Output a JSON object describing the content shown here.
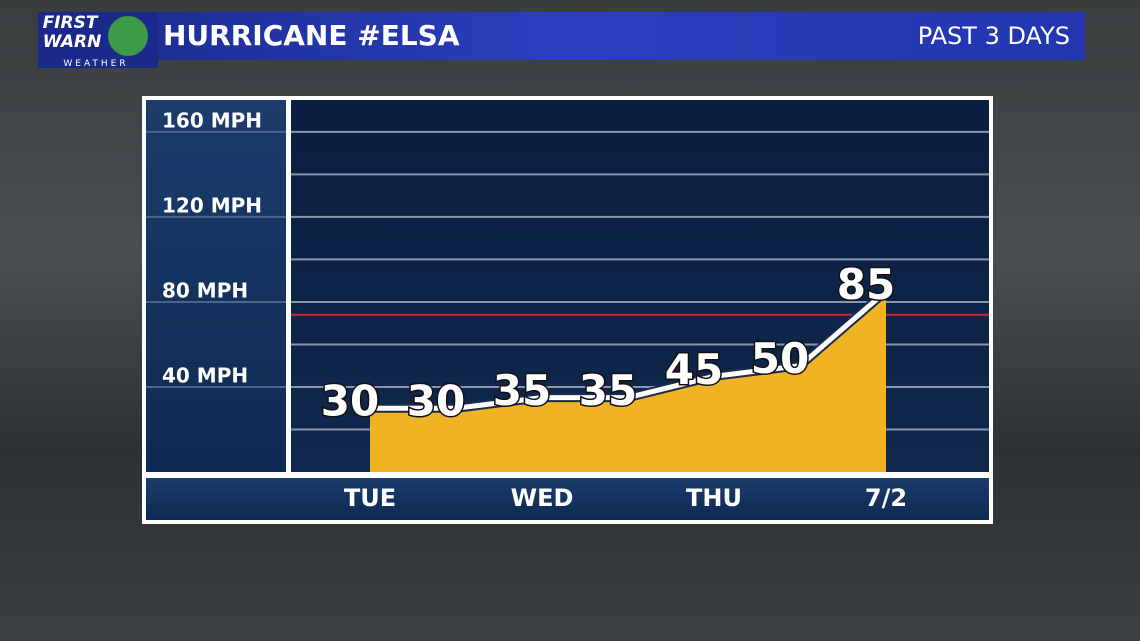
{
  "logo": {
    "line1": "FIRST",
    "line2": "WARN",
    "line3": "WEATHER"
  },
  "chart_data": {
    "type": "area",
    "title": "HURRICANE #ELSA",
    "subtitle": "PAST 3 DAYS",
    "categories": [
      "TUE",
      null,
      "WED",
      null,
      "THU",
      null,
      "7/2"
    ],
    "values": [
      30,
      30,
      35,
      35,
      45,
      50,
      85
    ],
    "color": "#f0b323",
    "line_color": "#ffffff",
    "ylim": [
      0,
      175
    ],
    "yticks": [
      {
        "value": 20,
        "label": null
      },
      {
        "value": 40,
        "label": "40 MPH"
      },
      {
        "value": 60,
        "label": null
      },
      {
        "value": 80,
        "label": "80 MPH"
      },
      {
        "value": 100,
        "label": null
      },
      {
        "value": 120,
        "label": "120 MPH"
      },
      {
        "value": 140,
        "label": null
      },
      {
        "value": 160,
        "label": "160 MPH"
      }
    ],
    "grid": true,
    "reference_line": {
      "value": 74,
      "color": "#c8282d"
    }
  }
}
